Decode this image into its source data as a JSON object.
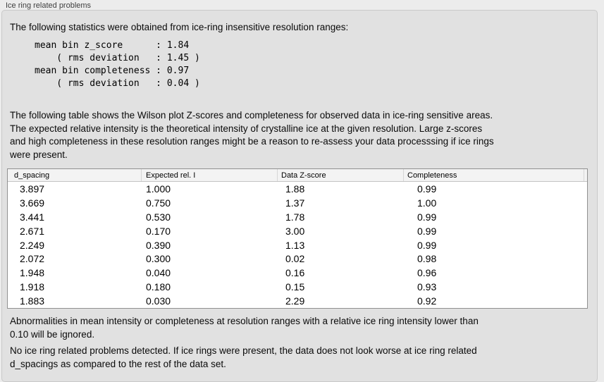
{
  "panel": {
    "title": "Ice ring related problems",
    "intro": "The following statistics were obtained from ice-ring insensitive resolution ranges:",
    "stats_lines": [
      "mean bin z_score      : 1.84",
      "    ( rms deviation   : 1.45 )",
      "mean bin completeness : 0.97",
      "    ( rms deviation   : 0.04 )"
    ],
    "description_lines": [
      "The following table shows the Wilson plot Z-scores and completeness for observed data in ice-ring sensitive areas.",
      "The expected relative intensity is the theoretical intensity of crystalline ice at the given resolution. Large z-scores",
      "and high completeness in these resolution ranges might be a reason to re-assess your data processsing if ice rings",
      "were present."
    ],
    "footnote_lines": [
      "Abnormalities in mean intensity or completeness at resolution ranges with a relative ice ring intensity lower than",
      "0.10 will be ignored."
    ],
    "conclusion_lines": [
      "No ice ring related problems detected. If ice rings were present, the data does not look worse at ice ring related",
      "d_spacings as compared to the rest of the data set."
    ]
  },
  "table": {
    "columns": [
      "d_spacing",
      "Expected rel. I",
      "Data Z-score",
      "Completeness"
    ],
    "rows": [
      [
        "3.897",
        "1.000",
        "1.88",
        "0.99"
      ],
      [
        "3.669",
        "0.750",
        "1.37",
        "1.00"
      ],
      [
        "3.441",
        "0.530",
        "1.78",
        "0.99"
      ],
      [
        "2.671",
        "0.170",
        "3.00",
        "0.99"
      ],
      [
        "2.249",
        "0.390",
        "1.13",
        "0.99"
      ],
      [
        "2.072",
        "0.300",
        "0.02",
        "0.98"
      ],
      [
        "1.948",
        "0.040",
        "0.16",
        "0.96"
      ],
      [
        "1.918",
        "0.180",
        "0.15",
        "0.93"
      ],
      [
        "1.883",
        "0.030",
        "2.29",
        "0.92"
      ]
    ]
  },
  "colors": {
    "window_background": "#ececec",
    "panel_background": "#e1e1e1",
    "table_background": "#ffffff",
    "header_background": "#f3f3f3",
    "text": "#000000"
  }
}
